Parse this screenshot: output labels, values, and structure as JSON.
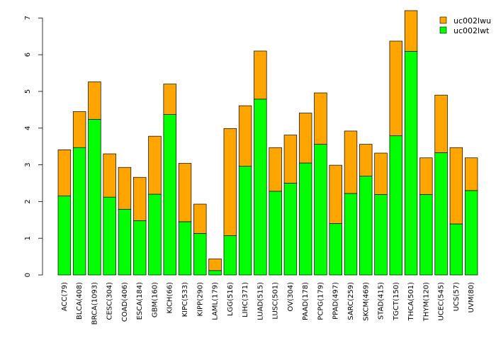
{
  "chart_data": {
    "type": "bar",
    "stacked": true,
    "title": "",
    "xlabel": "",
    "ylabel": "",
    "ylim": [
      0,
      7.2
    ],
    "yticks": [
      0,
      1,
      2,
      3,
      4,
      5,
      6,
      7
    ],
    "grid": false,
    "legend": {
      "position": "top-right",
      "entries": [
        "uc002lwu",
        "uc002lwt"
      ]
    },
    "categories": [
      "ACC(79)",
      "BLCA(408)",
      "BRCA(1093)",
      "CESC(304)",
      "COAD(406)",
      "ESCA(184)",
      "GBM(160)",
      "KICH(66)",
      "KIPC(533)",
      "KIPP(290)",
      "LAML(179)",
      "LGG(516)",
      "LIHC(371)",
      "LUAD(515)",
      "LUSC(501)",
      "OV(304)",
      "PAAD(178)",
      "PCPG(179)",
      "PPAD(497)",
      "SARC(259)",
      "SKCM(469)",
      "STAD(415)",
      "TGCT(150)",
      "THCA(501)",
      "THYM(120)",
      "UCEC(545)",
      "UCS(57)",
      "UVM(80)"
    ],
    "series": [
      {
        "name": "uc002lwt",
        "color": "#00ff00",
        "values": [
          2.15,
          3.47,
          4.24,
          2.12,
          1.79,
          1.48,
          2.2,
          4.37,
          1.45,
          1.13,
          0.12,
          1.07,
          2.96,
          4.79,
          2.28,
          2.5,
          3.05,
          3.56,
          1.4,
          2.22,
          2.69,
          2.19,
          3.79,
          6.09,
          2.19,
          3.33,
          1.39,
          2.3
        ]
      },
      {
        "name": "uc002lwu",
        "color": "#ffa500",
        "values": [
          1.26,
          0.98,
          1.02,
          1.18,
          1.14,
          1.18,
          1.58,
          0.83,
          1.59,
          0.8,
          0.32,
          2.92,
          1.65,
          1.31,
          1.19,
          1.31,
          1.36,
          1.4,
          1.59,
          1.7,
          0.87,
          1.13,
          2.58,
          1.11,
          1.0,
          1.57,
          2.08,
          0.89
        ]
      }
    ]
  }
}
